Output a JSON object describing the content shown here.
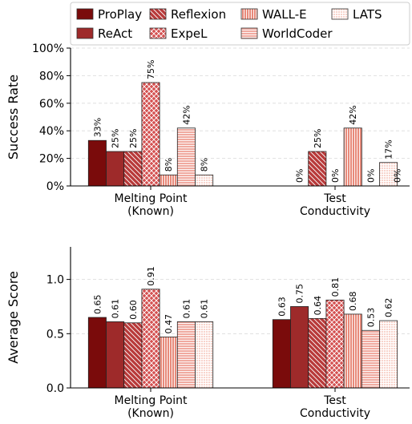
{
  "legend": {
    "placement": "top",
    "entries": [
      "ProPlay",
      "Reflexion",
      "WALL-E",
      "LATS",
      "ReAct",
      "ExpeL",
      "WorldCoder"
    ]
  },
  "series_style": [
    {
      "name": "ProPlay",
      "color": "#7a0b0b",
      "pattern": "solid"
    },
    {
      "name": "ReAct",
      "color": "#9e2a2a",
      "pattern": "solid"
    },
    {
      "name": "Reflexion",
      "color": "#b83a3a",
      "pattern": "diagonal-backslash"
    },
    {
      "name": "ExpeL",
      "color": "#d45050",
      "pattern": "crosshatch-diagonal"
    },
    {
      "name": "WALL-E",
      "color": "#e88a7a",
      "pattern": "vertical-lines"
    },
    {
      "name": "WorldCoder",
      "color": "#f0aaa0",
      "pattern": "horizontal-lines"
    },
    {
      "name": "LATS",
      "color": "#f8d4cc",
      "pattern": "grid"
    }
  ],
  "chart_data": [
    {
      "type": "bar",
      "categories": [
        [
          "Melting Point",
          "(Known)"
        ],
        [
          "Test",
          "Conductivity"
        ]
      ],
      "ylabel": "Success Rate",
      "ylim": [
        0,
        100
      ],
      "yticks": [
        "0%",
        "20%",
        "40%",
        "60%",
        "80%",
        "100%"
      ],
      "ytick_values": [
        0,
        20,
        40,
        60,
        80,
        100
      ],
      "grid": "y-dashed",
      "series": [
        {
          "name": "ProPlay",
          "values": [
            33,
            0
          ],
          "labels": [
            "33%",
            ""
          ]
        },
        {
          "name": "ReAct",
          "values": [
            25,
            0
          ],
          "labels": [
            "25%",
            "0%"
          ]
        },
        {
          "name": "Reflexion",
          "values": [
            25,
            25
          ],
          "labels": [
            "25%",
            "25%"
          ]
        },
        {
          "name": "ExpeL",
          "values": [
            75,
            0
          ],
          "labels": [
            "75%",
            "0%"
          ]
        },
        {
          "name": "WALL-E",
          "values": [
            8,
            42
          ],
          "labels": [
            "8%",
            "42%"
          ]
        },
        {
          "name": "WorldCoder",
          "values": [
            42,
            0
          ],
          "labels": [
            "42%",
            "0%"
          ]
        },
        {
          "name": "LATS",
          "values": [
            8,
            17
          ],
          "labels": [
            "8%",
            "17%"
          ]
        }
      ],
      "extra_labels": [
        {
          "category": 1,
          "series": 6,
          "offset": 1,
          "text": "0%",
          "value": 0
        }
      ]
    },
    {
      "type": "bar",
      "categories": [
        [
          "Melting Point",
          "(Known)"
        ],
        [
          "Test",
          "Conductivity"
        ]
      ],
      "ylabel": "Average Score",
      "ylim": [
        0,
        1.3
      ],
      "yticks": [
        "0.0",
        "0.5",
        "1.0"
      ],
      "ytick_values": [
        0,
        0.5,
        1.0
      ],
      "grid": "y-dashed",
      "series": [
        {
          "name": "ProPlay",
          "values": [
            0.65,
            0.63
          ],
          "labels": [
            "0.65",
            "0.63"
          ]
        },
        {
          "name": "ReAct",
          "values": [
            0.61,
            0.75
          ],
          "labels": [
            "0.61",
            "0.75"
          ]
        },
        {
          "name": "Reflexion",
          "values": [
            0.6,
            0.64
          ],
          "labels": [
            "0.60",
            "0.64"
          ]
        },
        {
          "name": "ExpeL",
          "values": [
            0.91,
            0.81
          ],
          "labels": [
            "0.91",
            "0.81"
          ]
        },
        {
          "name": "WALL-E",
          "values": [
            0.47,
            0.68
          ],
          "labels": [
            "0.47",
            "0.68"
          ]
        },
        {
          "name": "WorldCoder",
          "values": [
            0.61,
            0.53
          ],
          "labels": [
            "0.61",
            "0.53"
          ]
        },
        {
          "name": "LATS",
          "values": [
            0.61,
            0.62
          ],
          "labels": [
            "0.61",
            "0.62"
          ]
        }
      ]
    }
  ]
}
